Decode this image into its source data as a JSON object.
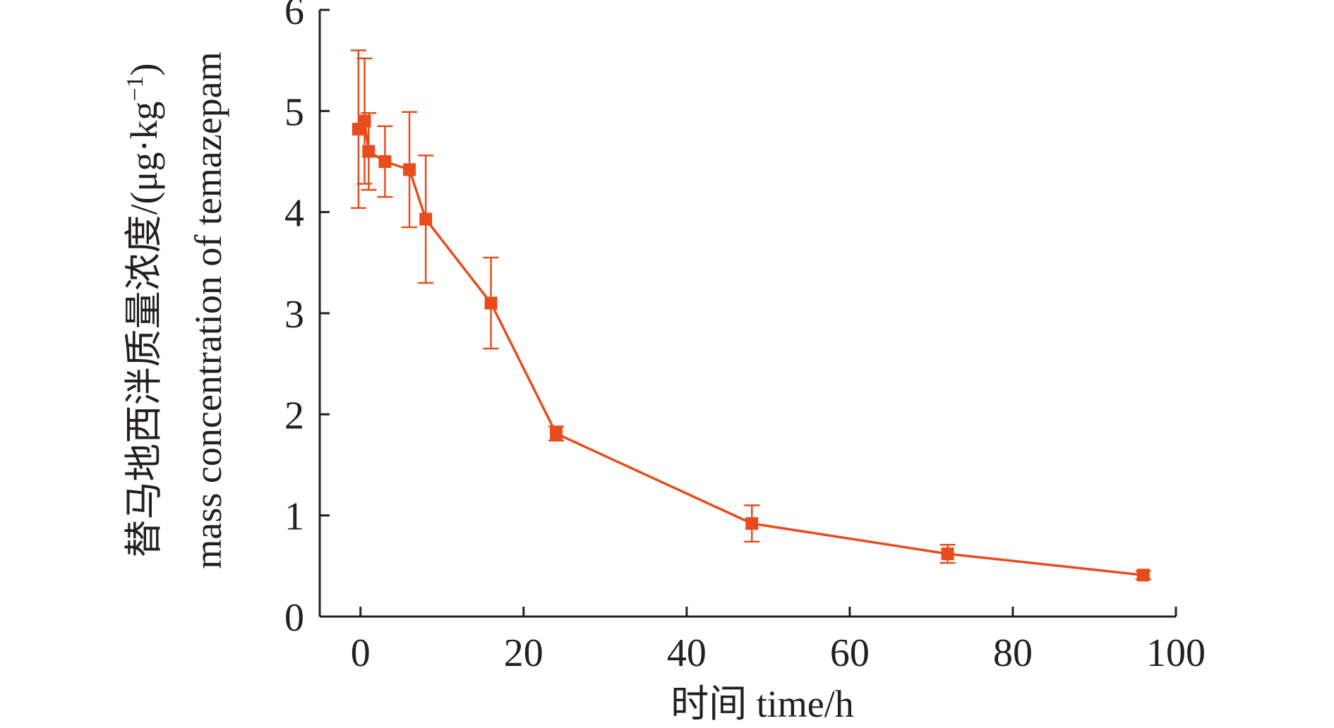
{
  "chart_data": {
    "type": "line",
    "xlabel": "时间 time/h",
    "ylabel_cn": "替马地西泮质量浓度/(μg·kg",
    "ylabel_sup": "−1",
    "ylabel_close": ")",
    "ylabel_en": "mass concentration of temazepam",
    "xlim": [
      -5,
      100
    ],
    "ylim": [
      0,
      6
    ],
    "x_ticks": [
      0,
      20,
      40,
      60,
      80,
      100
    ],
    "y_ticks": [
      0,
      1,
      2,
      3,
      4,
      5,
      6
    ],
    "grid": false,
    "series": [
      {
        "color": "#e84c1d",
        "marker": "square",
        "points": [
          {
            "x": -0.25,
            "y": 4.82,
            "err": 0.78
          },
          {
            "x": 0.5,
            "y": 4.9,
            "err": 0.62
          },
          {
            "x": 1,
            "y": 4.6,
            "err": 0.38
          },
          {
            "x": 3,
            "y": 4.5,
            "err": 0.35
          },
          {
            "x": 6,
            "y": 4.42,
            "err": 0.57
          },
          {
            "x": 8,
            "y": 3.93,
            "err": 0.63
          },
          {
            "x": 16,
            "y": 3.1,
            "err": 0.45
          },
          {
            "x": 24,
            "y": 1.81,
            "err": 0.07
          },
          {
            "x": 48,
            "y": 0.92,
            "err": 0.18
          },
          {
            "x": 72,
            "y": 0.62,
            "err": 0.09
          },
          {
            "x": 96,
            "y": 0.41,
            "err": 0.04
          }
        ]
      }
    ]
  }
}
